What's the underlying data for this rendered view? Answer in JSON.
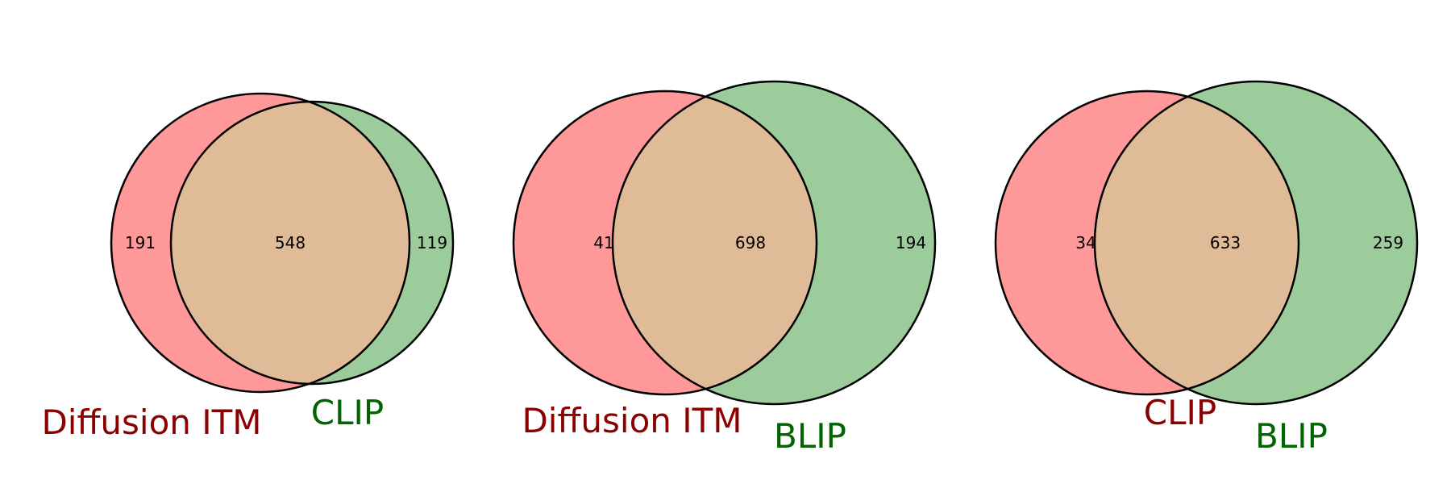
{
  "colors": {
    "left_set": "#ff9999",
    "right_set": "#9ccc9c",
    "overlap": "#dfbb98",
    "left_label": "#8b0000",
    "right_label": "#006400",
    "outline": "#000000"
  },
  "venn_diagrams": [
    {
      "left_label": "Diffusion ITM",
      "right_label": "CLIP",
      "left_only": "191",
      "intersection": "548",
      "right_only": "119"
    },
    {
      "left_label": "Diffusion ITM",
      "right_label": "BLIP",
      "left_only": "41",
      "intersection": "698",
      "right_only": "194"
    },
    {
      "left_label": "CLIP",
      "right_label": "BLIP",
      "left_only": "34",
      "intersection": "633",
      "right_only": "259"
    }
  ]
}
